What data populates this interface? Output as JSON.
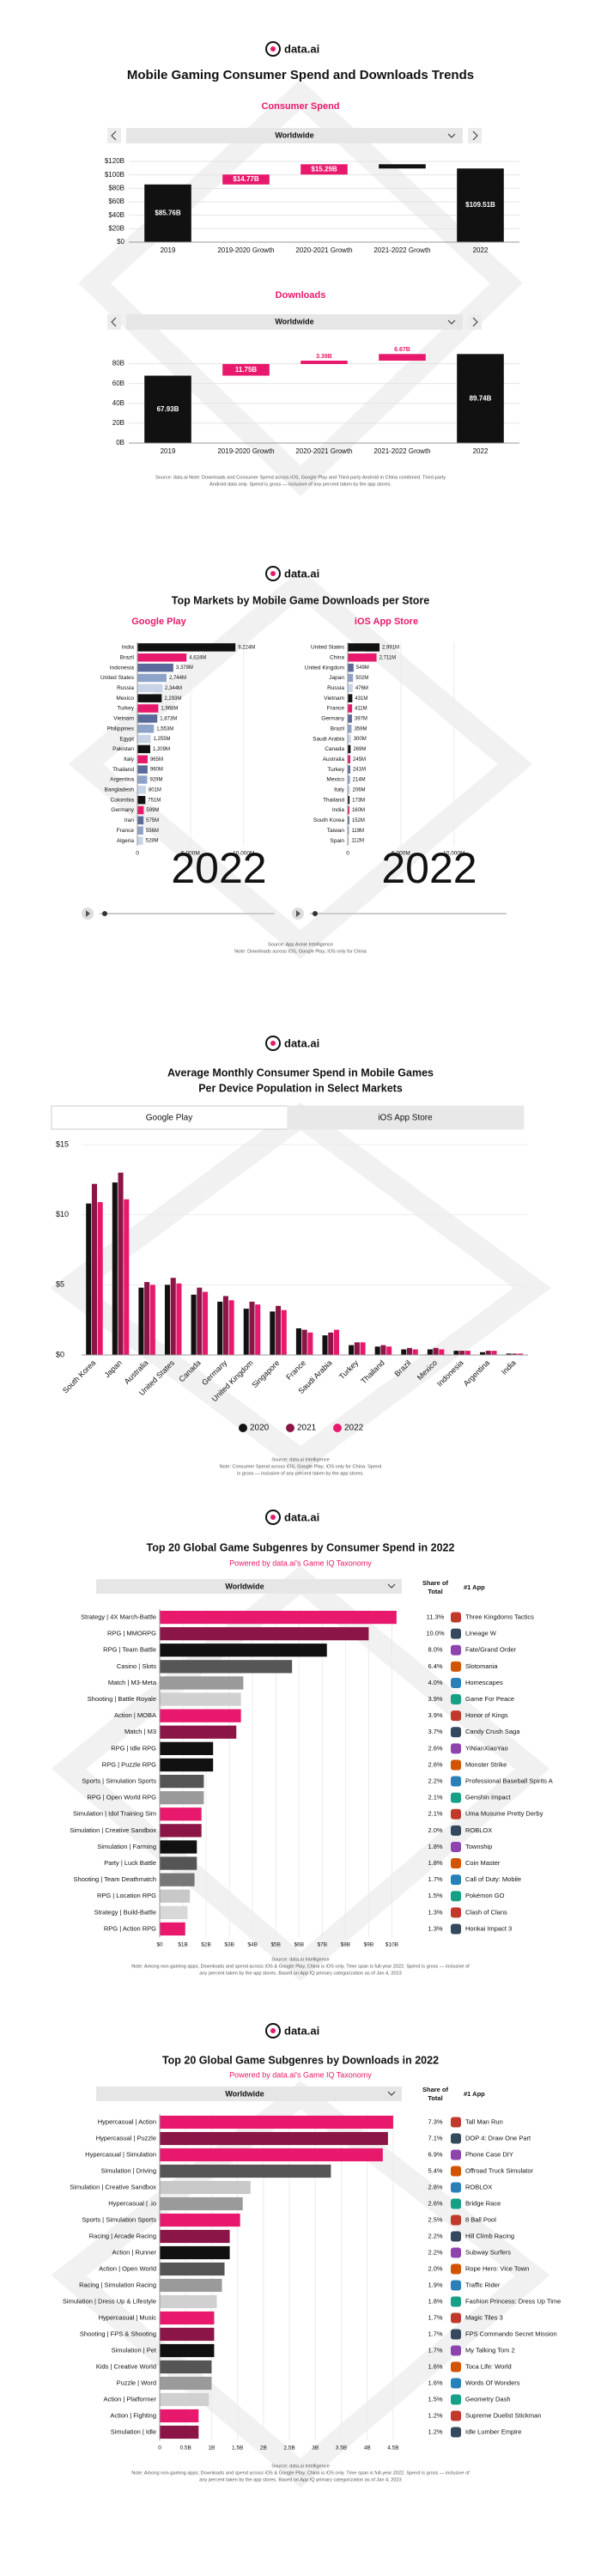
{
  "sections": [
    {
      "logo": "data.ai",
      "title": "Mobile Gaming Consumer Spend and Downloads Trends",
      "note": [
        "Source: data.ai Note: Downloads and Consumer Spend across iOS, Google Play and Third-party Android in China combined. Third-party",
        "Android data only. Spend is gross — inclusive of any percent taken by the app stores."
      ]
    },
    {
      "logo": "data.ai",
      "title": "Top Markets by Mobile Game Downloads per Store",
      "note": [
        "Source: App Annie Intelligence",
        "Note: Downloads across iOS, Google Play; iOS only for China"
      ]
    },
    {
      "logo": "data.ai",
      "title": [
        "Average Monthly Consumer Spend in Mobile Games",
        "Per Device Population in Select Markets"
      ],
      "tabs": [
        "Google Play",
        "iOS App Store"
      ],
      "note": [
        "Source: data.ai Intelligence",
        "Note: Consumer Spend across iOS, Google Play; iOS only for China. Spend",
        "is gross — inclusive of any percent taken by the app stores."
      ]
    },
    {
      "logo": "data.ai",
      "title": "Top 20 Global Game Subgenres by Consumer Spend in 2022",
      "subtitle": "Powered by data.ai's Game IQ Taxonomy",
      "note": [
        "Source: data.ai Intelligence",
        "Note: Among non-gaming apps; Downloads and spend across iOS & Google Play, China is iOS only. Time span is full-year 2022. Spend is gross — inclusive of",
        "any percent taken by the app stores. Based on App IQ primary categorization as of Jan 4, 2023"
      ]
    },
    {
      "logo": "data.ai",
      "title": "Top 20 Global Game Subgenres by Downloads in 2022",
      "subtitle": "Powered by data.ai's Game IQ Taxonomy",
      "note": [
        "Source: data.ai Intelligence",
        "Note: Among non-gaming apps; Downloads and spend across iOS & Google Play, China is iOS only. Time span is full-year 2022. Spend is gross — inclusive of",
        "any percent taken by the app stores. Based on App IQ primary categorization as of Jan 4, 2023"
      ]
    }
  ],
  "chart_data": [
    {
      "type": "waterfall",
      "title": "Consumer Spend",
      "filter": "Worldwide",
      "categories": [
        "2019",
        "2019-2020 Growth",
        "2020-2021 Growth",
        "2021-2022 Growth",
        "2022"
      ],
      "values": [
        85.76,
        14.77,
        15.29,
        -6.31,
        109.51
      ],
      "value_labels": [
        "$85.76B",
        "$14.77B",
        "$15.29B",
        null,
        "$109.51B"
      ],
      "colors": [
        "#111111",
        "#e8196c",
        "#e8196c",
        "#111111",
        "#111111"
      ],
      "ylim": [
        0,
        120
      ],
      "yticks": [
        {
          "value": 0,
          "label": "$0"
        },
        {
          "value": 20,
          "label": "$20B"
        },
        {
          "value": 40,
          "label": "$40B"
        },
        {
          "value": 60,
          "label": "$60B"
        },
        {
          "value": 80,
          "label": "$80B"
        },
        {
          "value": 100,
          "label": "$100B"
        },
        {
          "value": 120,
          "label": "$120B"
        }
      ]
    },
    {
      "type": "waterfall",
      "title": "Downloads",
      "filter": "Worldwide",
      "categories": [
        "2019",
        "2019-2020 Growth",
        "2020-2021 Growth",
        "2021-2022 Growth",
        "2022"
      ],
      "values": [
        67.93,
        11.75,
        3.39,
        6.67,
        89.74
      ],
      "value_labels": [
        "67.93B",
        "11.75B",
        "3.39B",
        "6.67B",
        "89.74B"
      ],
      "colors": [
        "#111111",
        "#e8196c",
        "#e8196c",
        "#e8196c",
        "#111111"
      ],
      "ylim": [
        0,
        90
      ],
      "yticks": [
        {
          "value": 0,
          "label": "0B"
        },
        {
          "value": 20,
          "label": "20B"
        },
        {
          "value": 40,
          "label": "40B"
        },
        {
          "value": 60,
          "label": "60B"
        },
        {
          "value": 80,
          "label": "80B"
        }
      ]
    },
    {
      "type": "hbar",
      "title": "Google Play",
      "annotation": "2022",
      "categories": [
        "India",
        "Brazil",
        "Indonesia",
        "United States",
        "Russia",
        "Mexico",
        "Turkey",
        "Vietnam",
        "Philippines",
        "Egypt",
        "Pakistan",
        "Italy",
        "Thailand",
        "Argentina",
        "Bangladesh",
        "Colombia",
        "Germany",
        "Iran",
        "France",
        "Algeria"
      ],
      "values": [
        9224,
        4624,
        3379,
        2744,
        2344,
        2293,
        1968,
        1873,
        1553,
        1255,
        1209,
        965,
        960,
        929,
        801,
        751,
        599,
        575,
        556,
        528
      ],
      "value_labels": [
        "9,224M",
        "4,624M",
        "3,379M",
        "2,744M",
        "2,344M",
        "2,293M",
        "1,968M",
        "1,873M",
        "1,553M",
        "1,255M",
        "1,209M",
        "965M",
        "960M",
        "929M",
        "801M",
        "751M",
        "599M",
        "575M",
        "556M",
        "528M"
      ],
      "colors": [
        "#111111",
        "#e8196c",
        "#5a6a9a",
        "#8fa3c8",
        "#c9d3e6",
        "#111111",
        "#e8196c",
        "#5a6a9a",
        "#8fa3c8",
        "#c9d3e6",
        "#111111",
        "#e8196c",
        "#5a6a9a",
        "#8fa3c8",
        "#c9d3e6",
        "#111111",
        "#e8196c",
        "#5a6a9a",
        "#8fa3c8",
        "#c9d3e6"
      ],
      "xlim": [
        0,
        10500
      ],
      "xticks": [
        0,
        {
          "value": 5000,
          "label": "5,000M"
        },
        {
          "value": 10000,
          "label": "10,000M"
        }
      ]
    },
    {
      "type": "hbar",
      "title": "iOS App Store",
      "annotation": "2022",
      "categories": [
        "United States",
        "China",
        "United Kingdom",
        "Japan",
        "Russia",
        "Vietnam",
        "France",
        "Germany",
        "Brazil",
        "Saudi Arabia",
        "Canada",
        "Australia",
        "Turkey",
        "Mexico",
        "Italy",
        "Thailand",
        "India",
        "South Korea",
        "Taiwan",
        "Spain"
      ],
      "values": [
        2991,
        2711,
        549,
        502,
        476,
        431,
        411,
        397,
        359,
        300,
        269,
        245,
        241,
        214,
        206,
        173,
        160,
        152,
        119,
        112
      ],
      "value_labels": [
        "2,991M",
        "2,711M",
        "549M",
        "502M",
        "476M",
        "431M",
        "411M",
        "397M",
        "359M",
        "300M",
        "269M",
        "245M",
        "241M",
        "214M",
        "206M",
        "173M",
        "160M",
        "152M",
        "119M",
        "112M"
      ],
      "colors": [
        "#111111",
        "#e8196c",
        "#5a6a9a",
        "#8fa3c8",
        "#c9d3e6",
        "#111111",
        "#e8196c",
        "#5a6a9a",
        "#8fa3c8",
        "#c9d3e6",
        "#111111",
        "#e8196c",
        "#5a6a9a",
        "#8fa3c8",
        "#c9d3e6",
        "#111111",
        "#e8196c",
        "#5a6a9a",
        "#8fa3c8",
        "#c9d3e6"
      ],
      "xlim": [
        0,
        10500
      ],
      "xticks": [
        0,
        {
          "value": 5000,
          "label": "5,000M"
        },
        {
          "value": 10000,
          "label": "10,000M"
        }
      ]
    },
    {
      "type": "bar",
      "categories": [
        "South Korea",
        "Japan",
        "Australia",
        "United States",
        "Canada",
        "Germany",
        "United Kingdom",
        "Singapore",
        "France",
        "Saudi Arabia",
        "Turkey",
        "Thailand",
        "Brazil",
        "Mexico",
        "Indonesia",
        "Argentina",
        "India"
      ],
      "series": [
        {
          "name": "2020",
          "color": "#111111",
          "values": [
            10.8,
            12.3,
            4.8,
            5.0,
            4.3,
            3.8,
            3.3,
            3.1,
            1.9,
            1.4,
            0.7,
            0.6,
            0.4,
            0.4,
            0.3,
            0.2,
            0.1
          ]
        },
        {
          "name": "2021",
          "color": "#8b1546",
          "values": [
            12.2,
            13.0,
            5.2,
            5.5,
            4.8,
            4.2,
            3.8,
            3.5,
            1.8,
            1.6,
            0.9,
            0.7,
            0.5,
            0.5,
            0.3,
            0.3,
            0.1
          ]
        },
        {
          "name": "2022",
          "color": "#e8196c",
          "values": [
            10.9,
            11.1,
            5.0,
            5.1,
            4.5,
            3.9,
            3.6,
            3.2,
            1.6,
            1.8,
            0.9,
            0.6,
            0.4,
            0.4,
            0.3,
            0.3,
            0.1
          ]
        }
      ],
      "ylim": [
        0,
        15
      ],
      "yticks": [
        {
          "value": 0,
          "label": "$0"
        },
        {
          "value": 5,
          "label": "$5"
        },
        {
          "value": 10,
          "label": "$10"
        },
        {
          "value": 15,
          "label": "$15"
        }
      ],
      "grid": true
    },
    {
      "type": "hbar",
      "filter": "Worldwide",
      "share_header": [
        "Share of",
        "Total"
      ],
      "app_header": "#1 App",
      "categories": [
        "Strategy | 4X March-Battle",
        "RPG | MMORPG",
        "RPG | Team Battle",
        "Casino | Slots",
        "Match | M3-Meta",
        "Shooting | Battle Royale",
        "Action | MOBA",
        "Match | M3",
        "RPG | Idle RPG",
        "RPG | Puzzle RPG",
        "Sports | Simulation Sports",
        "RPG | Open World RPG",
        "Simulation | Idol Training Sim",
        "Simulation | Creative Sandbox",
        "Simulation | Farming",
        "Party | Luck Battle",
        "Shooting | Team Deathmatch",
        "RPG | Location RPG",
        "Strategy | Build-Battle",
        "RPG | Action RPG"
      ],
      "values": [
        10.2,
        9.0,
        7.2,
        5.7,
        3.6,
        3.5,
        3.5,
        3.3,
        2.3,
        2.3,
        1.9,
        1.9,
        1.8,
        1.8,
        1.6,
        1.6,
        1.5,
        1.3,
        1.2,
        1.1
      ],
      "colors": [
        "#e8196c",
        "#8b1546",
        "#111111",
        "#555555",
        "#9a9a9a",
        "#d0d0d0",
        "#e8196c",
        "#8b1546",
        "#111111",
        "#111111",
        "#555555",
        "#9a9a9a",
        "#e8196c",
        "#8b1546",
        "#111111",
        "#555555",
        "#777777",
        "#c8c8c8",
        "#d8d8d8",
        "#e8196c"
      ],
      "shares": [
        "11.3%",
        "10.0%",
        "8.0%",
        "6.4%",
        "4.0%",
        "3.9%",
        "3.9%",
        "3.7%",
        "2.6%",
        "2.6%",
        "2.2%",
        "2.1%",
        "2.1%",
        "2.0%",
        "1.8%",
        "1.8%",
        "1.7%",
        "1.5%",
        "1.3%",
        "1.3%"
      ],
      "apps": [
        "Three Kingdoms Tactics",
        "Lineage W",
        "Fate/Grand Order",
        "Slotomania",
        "Homescapes",
        "Game For Peace",
        "Honor of Kings",
        "Candy Crush Saga",
        "YiNianXiaoYao",
        "Monster Strike",
        "Professional Baseball Spirits A",
        "Genshin Impact",
        "Uma Musume Pretty Derby",
        "ROBLOX",
        "Township",
        "Coin Master",
        "Call of Duty: Mobile",
        "Pokémon GO",
        "Clash of Clans",
        "Honkai Impact 3"
      ],
      "xlim": [
        0,
        10.5
      ],
      "xticks": [
        {
          "value": 0,
          "label": "$0"
        },
        {
          "value": 1,
          "label": "$1B"
        },
        {
          "value": 2,
          "label": "$2B"
        },
        {
          "value": 3,
          "label": "$3B"
        },
        {
          "value": 4,
          "label": "$4B"
        },
        {
          "value": 5,
          "label": "$5B"
        },
        {
          "value": 6,
          "label": "$6B"
        },
        {
          "value": 7,
          "label": "$7B"
        },
        {
          "value": 8,
          "label": "$8B"
        },
        {
          "value": 9,
          "label": "$9B"
        },
        {
          "value": 10,
          "label": "$10B"
        }
      ]
    },
    {
      "type": "hbar",
      "filter": "Worldwide",
      "share_header": [
        "Share of",
        "Total"
      ],
      "app_header": "#1 App",
      "categories": [
        "Hypercasual | Action",
        "Hypercasual | Puzzle",
        "Hypercasual | Simulation",
        "Simulation | Driving",
        "Simulation | Creative Sandbox",
        "Hypercasual | .io",
        "Sports | Simulation Sports",
        "Racing | Arcade Racing",
        "Action | Runner",
        "Action | Open World",
        "Racing | Simulation Racing",
        "Simulation | Dress Up & Lifestyle",
        "Hypercasual | Music",
        "Shooting | FPS & Shooting",
        "Simulation | Pet",
        "Kids | Creative World",
        "Puzzle | Word",
        "Action | Platformer",
        "Action | Fighting",
        "Simulation | Idle"
      ],
      "values": [
        4.5,
        4.4,
        4.3,
        3.3,
        1.75,
        1.6,
        1.55,
        1.35,
        1.35,
        1.25,
        1.2,
        1.1,
        1.05,
        1.05,
        1.05,
        1.0,
        1.0,
        0.95,
        0.75,
        0.75
      ],
      "colors": [
        "#e8196c",
        "#8b1546",
        "#e8196c",
        "#555555",
        "#c8c8c8",
        "#9a9a9a",
        "#e8196c",
        "#8b1546",
        "#111111",
        "#555555",
        "#9a9a9a",
        "#d0d0d0",
        "#e8196c",
        "#8b1546",
        "#111111",
        "#555555",
        "#9a9a9a",
        "#d0d0d0",
        "#e8196c",
        "#8b1546"
      ],
      "shares": [
        "7.3%",
        "7.1%",
        "6.9%",
        "5.4%",
        "2.8%",
        "2.6%",
        "2.5%",
        "2.2%",
        "2.2%",
        "2.0%",
        "1.9%",
        "1.8%",
        "1.7%",
        "1.7%",
        "1.7%",
        "1.6%",
        "1.6%",
        "1.5%",
        "1.2%",
        "1.2%"
      ],
      "apps": [
        "Tall Man Run",
        "DOP 4: Draw One Part",
        "Phone Case DIY",
        "Offroad Truck Simulator",
        "ROBLOX",
        "Bridge Race",
        "8 Ball Pool",
        "Hill Climb Racing",
        "Subway Surfers",
        "Rope Hero: Vice Town",
        "Traffic Rider",
        "Fashion Princess: Dress Up Time",
        "Magic Tiles 3",
        "FPS Commando Secret Mission",
        "My Talking Tom 2",
        "Toca Life: World",
        "Words Of Wonders",
        "Geometry Dash",
        "Supreme Duelist Stickman",
        "Idle Lumber Empire"
      ],
      "xlim": [
        0,
        4.7
      ],
      "xticks": [
        0,
        {
          "value": 0.5,
          "label": "0.5B"
        },
        {
          "value": 1,
          "label": "1B"
        },
        {
          "value": 1.5,
          "label": "1.5B"
        },
        {
          "value": 2,
          "label": "2B"
        },
        {
          "value": 2.5,
          "label": "2.5B"
        },
        {
          "value": 3,
          "label": "3B"
        },
        {
          "value": 3.5,
          "label": "3.5B"
        },
        {
          "value": 4,
          "label": "4B"
        },
        {
          "value": 4.5,
          "label": "4.5B"
        }
      ]
    }
  ]
}
